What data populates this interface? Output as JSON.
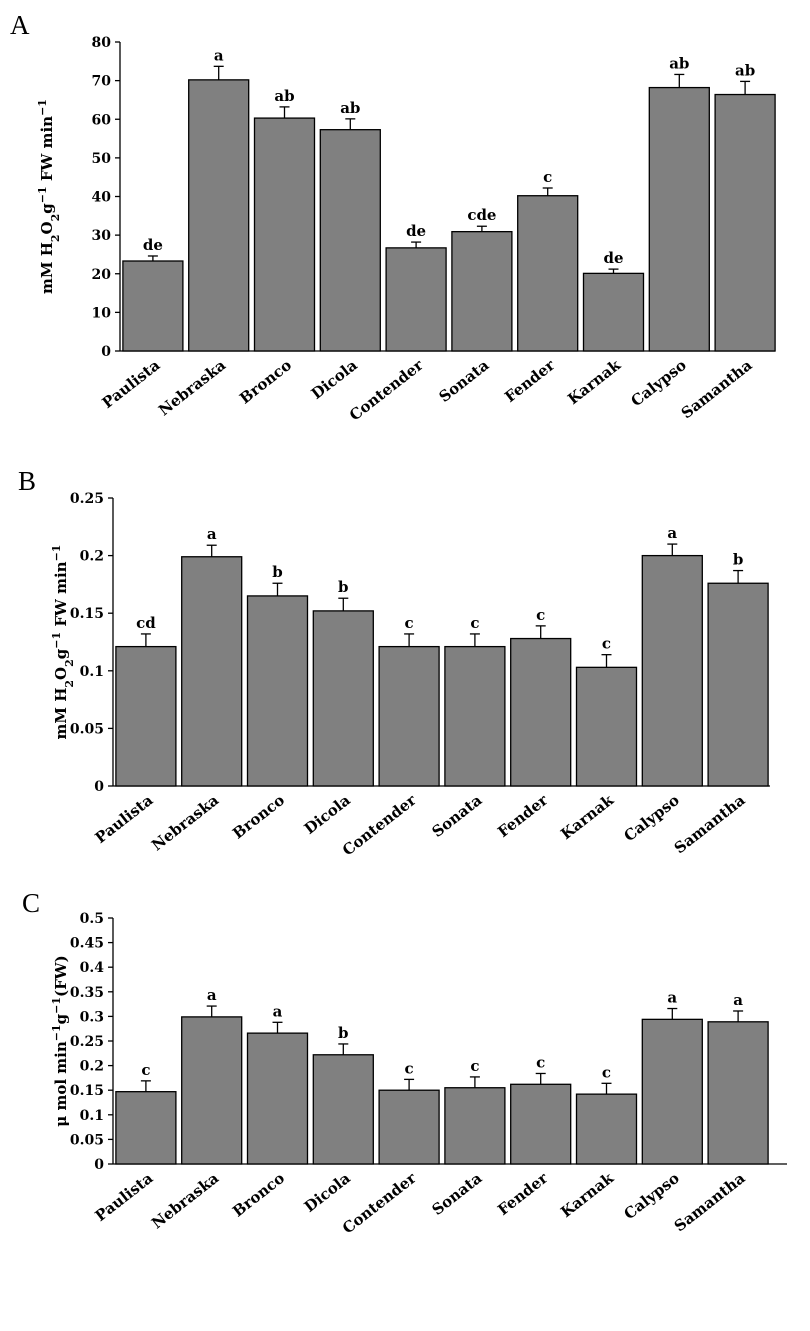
{
  "figure": {
    "bar_color": "#808080",
    "axis_color": "#000000"
  },
  "chart_data": [
    {
      "panel": "A",
      "type": "bar",
      "ylabel": "mM H₂O₂g⁻¹ FW min⁻¹",
      "ylabel_parts": [
        {
          "t": "mM H"
        },
        {
          "t": "2",
          "sub": true
        },
        {
          "t": "O"
        },
        {
          "t": "2",
          "sub": true
        },
        {
          "t": "g"
        },
        {
          "t": "−1",
          "sup": true
        },
        {
          "t": " FW min"
        },
        {
          "t": "−1",
          "sup": true
        }
      ],
      "ylim": [
        0,
        80
      ],
      "yticks": [
        0,
        10,
        20,
        30,
        40,
        50,
        60,
        70,
        80
      ],
      "categories": [
        "Paulista",
        "Nebraska",
        "Bronco",
        "Dicola",
        "Contender",
        "Sonata",
        "Fender",
        "Karnak",
        "Calypso",
        "Samantha"
      ],
      "values": [
        23.3,
        70.2,
        60.3,
        57.3,
        26.7,
        30.9,
        40.2,
        20.1,
        68.2,
        66.4
      ],
      "errors": [
        1.3,
        3.5,
        2.9,
        2.8,
        1.5,
        1.4,
        2.0,
        1.1,
        3.4,
        3.4
      ],
      "labels": [
        "de",
        "a",
        "ab",
        "ab",
        "de",
        "cde",
        "c",
        "de",
        "ab",
        "ab"
      ]
    },
    {
      "panel": "B",
      "type": "bar",
      "ylabel": "mM H₂O₂g⁻¹ FW min⁻¹",
      "ylabel_parts": [
        {
          "t": "mM H"
        },
        {
          "t": "2",
          "sub": true
        },
        {
          "t": "O"
        },
        {
          "t": "2",
          "sub": true
        },
        {
          "t": "g"
        },
        {
          "t": "−1",
          "sup": true
        },
        {
          "t": " FW min"
        },
        {
          "t": "−1",
          "sup": true
        }
      ],
      "ylim": [
        0,
        0.25
      ],
      "yticks": [
        0,
        0.05,
        0.1,
        0.15,
        0.2,
        0.25
      ],
      "categories": [
        "Paulista",
        "Nebraska",
        "Bronco",
        "Dicola",
        "Contender",
        "Sonata",
        "Fender",
        "Karnak",
        "Calypso",
        "Samantha"
      ],
      "values": [
        0.121,
        0.199,
        0.165,
        0.152,
        0.121,
        0.121,
        0.128,
        0.103,
        0.2,
        0.176
      ],
      "errors": [
        0.011,
        0.01,
        0.011,
        0.011,
        0.011,
        0.011,
        0.011,
        0.011,
        0.01,
        0.011
      ],
      "labels": [
        "cd",
        "a",
        "b",
        "b",
        "c",
        "c",
        "c",
        "c",
        "a",
        "b"
      ]
    },
    {
      "panel": "C",
      "type": "bar",
      "ylabel": "μ mol min⁻¹g⁻¹(FW)",
      "ylabel_parts": [
        {
          "t": "μ mol min"
        },
        {
          "t": "−1",
          "sup": true
        },
        {
          "t": "g"
        },
        {
          "t": "−1",
          "sup": true
        },
        {
          "t": "(FW)"
        }
      ],
      "ylim": [
        0,
        0.5
      ],
      "yticks": [
        0,
        0.05,
        0.1,
        0.15,
        0.2,
        0.25,
        0.3,
        0.35,
        0.4,
        0.45,
        0.5
      ],
      "categories": [
        "Paulista",
        "Nebraska",
        "Bronco",
        "Dicola",
        "Contender",
        "Sonata",
        "Fender",
        "Karnak",
        "Calypso",
        "Samantha"
      ],
      "values": [
        0.147,
        0.299,
        0.266,
        0.222,
        0.15,
        0.155,
        0.162,
        0.142,
        0.294,
        0.289
      ],
      "errors": [
        0.022,
        0.022,
        0.022,
        0.022,
        0.022,
        0.022,
        0.022,
        0.022,
        0.022,
        0.022
      ],
      "labels": [
        "c",
        "a",
        "a",
        "b",
        "c",
        "c",
        "c",
        "c",
        "a",
        "a"
      ]
    }
  ]
}
